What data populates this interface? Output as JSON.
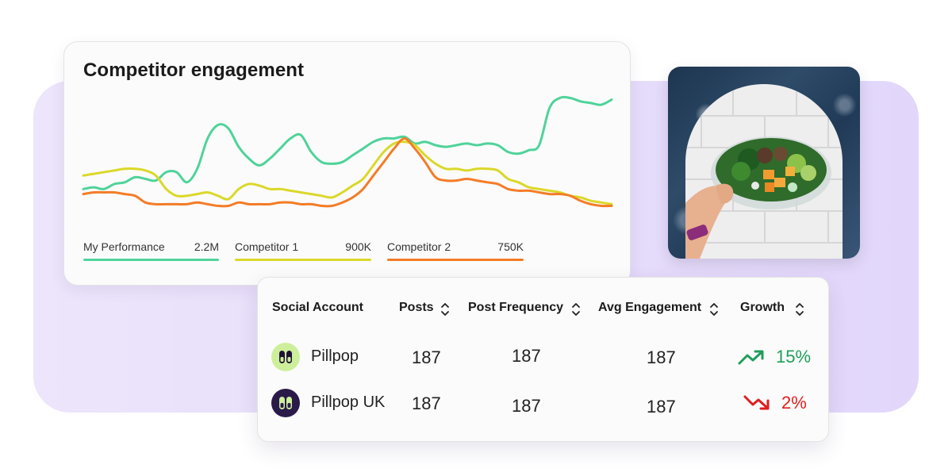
{
  "chart_card": {
    "title": "Competitor engagement"
  },
  "chart_data": {
    "type": "line",
    "title": "Competitor engagement",
    "xlabel": "",
    "ylabel": "",
    "series": [
      {
        "name": "My Performance",
        "total": "2.2M",
        "color": "#4fd39a",
        "values": [
          22,
          23,
          22,
          25,
          26,
          29,
          28,
          27,
          32,
          32,
          26,
          34,
          52,
          60,
          58,
          47,
          40,
          36,
          40,
          46,
          52,
          54,
          44,
          38,
          37,
          38,
          42,
          46,
          50,
          52,
          52,
          53,
          49,
          50,
          48,
          47,
          48,
          49,
          48,
          49,
          48,
          44,
          43,
          45,
          48,
          70,
          76,
          76,
          74,
          73,
          72,
          75
        ]
      },
      {
        "name": "Competitor 1",
        "total": "900K",
        "color": "#dbd82a",
        "values": [
          30,
          31,
          32,
          33,
          34,
          34,
          33,
          30,
          22,
          18,
          18,
          19,
          20,
          18,
          16,
          22,
          25,
          24,
          22,
          22,
          21,
          20,
          19,
          18,
          17,
          20,
          24,
          28,
          36,
          44,
          49,
          50,
          48,
          42,
          37,
          34,
          34,
          33,
          34,
          34,
          33,
          28,
          26,
          23,
          22,
          21,
          20,
          18,
          17,
          15,
          14,
          13
        ]
      },
      {
        "name": "Competitor 2",
        "total": "750K",
        "color": "#f47c27",
        "values": [
          19,
          20,
          20,
          20,
          19,
          18,
          14,
          13,
          13,
          13,
          13,
          14,
          13,
          12,
          12,
          14,
          13,
          13,
          13,
          14,
          14,
          13,
          13,
          12,
          12,
          14,
          17,
          22,
          30,
          38,
          46,
          52,
          46,
          38,
          29,
          27,
          27,
          28,
          27,
          26,
          25,
          22,
          21,
          21,
          20,
          19,
          19,
          18,
          15,
          13,
          12,
          12
        ]
      }
    ],
    "ylim": [
      0,
      80
    ],
    "grid": false,
    "legend": "bottom"
  },
  "table": {
    "headers": {
      "account": "Social Account",
      "posts": "Posts",
      "frequency": "Post Frequency",
      "engagement": "Avg Engagement",
      "growth": "Growth"
    },
    "rows": [
      {
        "name": "Pillpop",
        "posts": "187",
        "frequency": "187",
        "engagement": "187",
        "growth": "15%",
        "trend": "up",
        "trend_color": "#1f9e5a",
        "avatar_bg": "#cdef9b",
        "avatar_icon": "capsule-icon"
      },
      {
        "name": "Pillpop UK",
        "posts": "187",
        "frequency": "187",
        "engagement": "187",
        "growth": "2%",
        "trend": "down",
        "trend_color": "#e01e1e",
        "avatar_bg": "#2a1a4a",
        "avatar_icon": "capsule-icon"
      }
    ]
  },
  "colors": {
    "background_panel": "#e6dcfb",
    "growth_up": "#1f9e5a",
    "growth_down": "#e01e1e"
  }
}
